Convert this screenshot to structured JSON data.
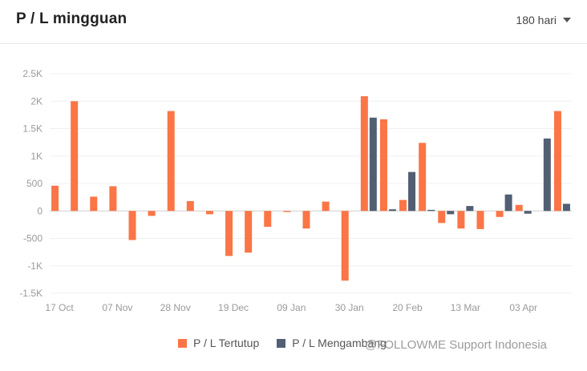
{
  "header": {
    "title": "P / L mingguan",
    "period_label": "180 hari"
  },
  "watermark": {
    "text": "@FOLLOWME Support Indonesia"
  },
  "chart_data": {
    "type": "bar",
    "title": "",
    "xlabel": "",
    "ylabel": "",
    "ylim": [
      -1500,
      2500
    ],
    "y_ticks": [
      "2.5K",
      "2K",
      "1.5K",
      "1K",
      "500",
      "0",
      "-500",
      "-1K",
      "-1.5K"
    ],
    "y_tick_values": [
      2500,
      2000,
      1500,
      1000,
      500,
      0,
      -500,
      -1000,
      -1500
    ],
    "x_tick_labels": [
      "17 Oct",
      "07 Nov",
      "28 Nov",
      "19 Dec",
      "09 Jan",
      "30 Jan",
      "20 Feb",
      "13 Mar",
      "03 Apr"
    ],
    "x_tick_index": [
      0,
      3,
      6,
      9,
      12,
      15,
      18,
      21,
      24
    ],
    "grid": true,
    "legend_position": "bottom",
    "series": [
      {
        "name": "P / L Tertutup",
        "color": "#fb7546",
        "values": [
          460,
          2000,
          260,
          450,
          -530,
          -90,
          1820,
          180,
          -60,
          -820,
          -760,
          -290,
          -20,
          -320,
          170,
          -1270,
          2090,
          1670,
          200,
          1240,
          -220,
          -320,
          -330,
          -110,
          110,
          0,
          1820
        ]
      },
      {
        "name": "P / L Mengambang",
        "color": "#525f73",
        "values": [
          0,
          0,
          0,
          0,
          0,
          0,
          0,
          0,
          0,
          0,
          0,
          0,
          0,
          0,
          0,
          0,
          1700,
          30,
          710,
          20,
          -60,
          90,
          0,
          300,
          -50,
          1320,
          130
        ]
      }
    ]
  }
}
